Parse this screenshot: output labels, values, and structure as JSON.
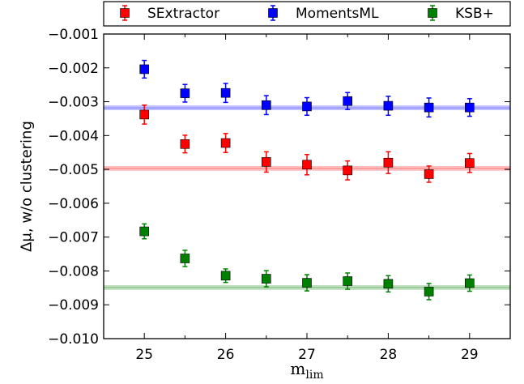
{
  "chart_data": {
    "type": "scatter",
    "title": "",
    "xlabel": "m_lim",
    "ylabel": "Δμ, w/o clustering",
    "xlim": [
      24.5,
      29.5
    ],
    "ylim": [
      -0.01,
      -0.001
    ],
    "x_ticks": [
      25,
      26,
      27,
      28,
      29
    ],
    "x_tick_labels": [
      "25",
      "26",
      "27",
      "28",
      "29"
    ],
    "y_ticks": [
      -0.01,
      -0.009,
      -0.008,
      -0.007,
      -0.006,
      -0.005,
      -0.004,
      -0.003,
      -0.002,
      -0.001
    ],
    "y_tick_labels": [
      "−0.010",
      "−0.009",
      "−0.008",
      "−0.007",
      "−0.006",
      "−0.005",
      "−0.004",
      "−0.003",
      "−0.002",
      "−0.001"
    ],
    "grid": false,
    "legend_position": "top",
    "series": [
      {
        "name": "SExtractor",
        "color": "#ff0000",
        "x": [
          25,
          25.5,
          26,
          26.5,
          27,
          27.5,
          28,
          28.5,
          29
        ],
        "y": [
          -0.00338,
          -0.00425,
          -0.00422,
          -0.00478,
          -0.00486,
          -0.00503,
          -0.0048,
          -0.00514,
          -0.00481
        ],
        "yerr": [
          0.00028,
          0.00026,
          0.00028,
          0.0003,
          0.0003,
          0.00028,
          0.00032,
          0.00024,
          0.00028
        ],
        "band": {
          "y": -0.00497,
          "half_width": 7e-05
        }
      },
      {
        "name": "MomentsML",
        "color": "#0000ff",
        "x": [
          25,
          25.5,
          26,
          26.5,
          27,
          27.5,
          28,
          28.5,
          29
        ],
        "y": [
          -0.00204,
          -0.00275,
          -0.00274,
          -0.0031,
          -0.00314,
          -0.00298,
          -0.00312,
          -0.00317,
          -0.00317
        ],
        "yerr": [
          0.00026,
          0.00026,
          0.00028,
          0.00028,
          0.00026,
          0.00025,
          0.00028,
          0.00028,
          0.00026
        ],
        "band": {
          "y": -0.00318,
          "half_width": 7e-05
        }
      },
      {
        "name": "KSB+",
        "color": "#008000",
        "x": [
          25,
          25.5,
          26,
          26.5,
          27,
          27.5,
          28,
          28.5,
          29
        ],
        "y": [
          -0.00683,
          -0.00763,
          -0.00814,
          -0.00823,
          -0.00835,
          -0.0083,
          -0.00838,
          -0.00861,
          -0.00836
        ],
        "yerr": [
          0.00022,
          0.00024,
          0.0002,
          0.00024,
          0.00024,
          0.00024,
          0.00024,
          0.00024,
          0.00024
        ],
        "band": {
          "y": -0.00849,
          "half_width": 7e-05
        }
      }
    ]
  }
}
